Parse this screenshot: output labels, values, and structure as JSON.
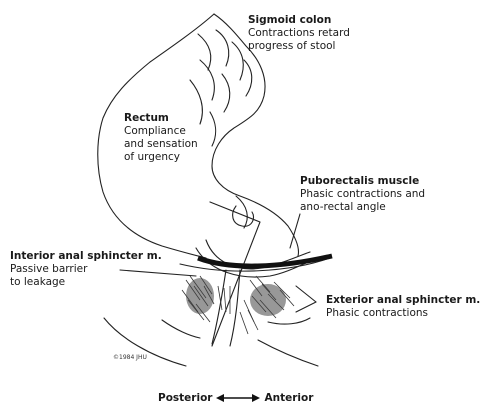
{
  "labels": {
    "sigmoid": {
      "title": "Sigmoid colon",
      "desc": "Contractions retard\nprogress of stool"
    },
    "rectum": {
      "title": "Rectum",
      "desc": "Compliance\nand sensation\nof urgency"
    },
    "puborectalis": {
      "title": "Puborectalis muscle",
      "desc": "Phasic contractions and\nano-rectal angle"
    },
    "interior_sphincter": {
      "title": "Interior anal sphincter m.",
      "desc": "Passive barrier\nto leakage"
    },
    "exterior_sphincter": {
      "title": "Exterior anal sphincter m.",
      "desc": "Phasic contractions"
    }
  },
  "axis": {
    "left": "Posterior",
    "right": "Anterior"
  },
  "copyright": "©1984 JHU"
}
